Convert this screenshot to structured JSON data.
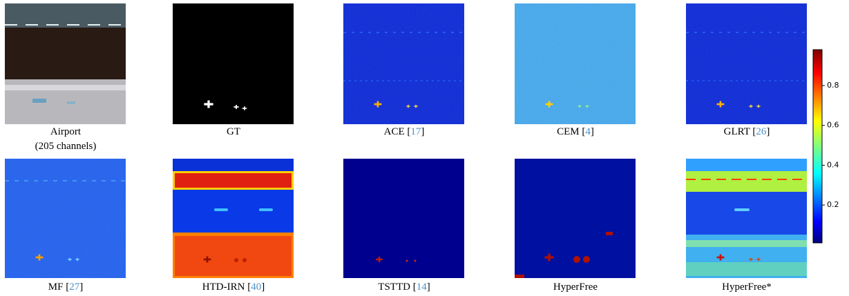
{
  "panels": [
    {
      "label": "Airport",
      "sublabel": "(205 channels)"
    },
    {
      "label": "GT"
    },
    {
      "label": "ACE",
      "ref": [
        "[",
        "17",
        "]"
      ]
    },
    {
      "label": "CEM",
      "ref": [
        "[",
        "4",
        "]"
      ]
    },
    {
      "label": "GLRT",
      "ref": [
        "[",
        "26",
        "]"
      ]
    },
    {
      "label": "MF",
      "ref": [
        "[",
        "27",
        "]"
      ]
    },
    {
      "label": "HTD-IRN",
      "ref": [
        "[",
        "40",
        "]"
      ]
    },
    {
      "label": "TSTTD",
      "ref": [
        "[",
        "14",
        "]"
      ]
    },
    {
      "label": "HyperFree"
    },
    {
      "label": "HyperFree*"
    }
  ],
  "colorbar": {
    "lim": [
      0.01,
      0.98
    ],
    "ticks": [
      0.2,
      0.4,
      0.6,
      0.8
    ]
  }
}
